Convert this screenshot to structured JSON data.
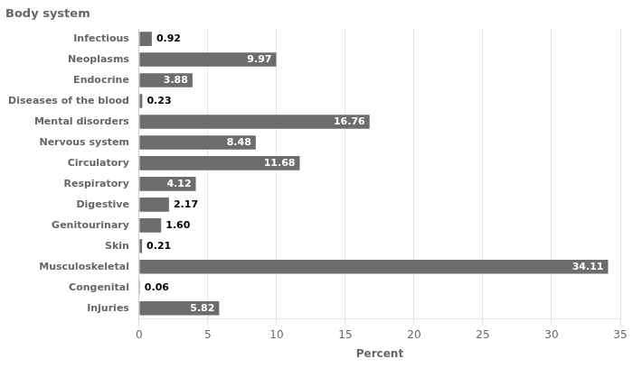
{
  "chart_data": {
    "type": "bar",
    "orientation": "horizontal",
    "title": "Body system",
    "xlabel": "Percent",
    "categories": [
      "Infectious",
      "Neoplasms",
      "Endocrine",
      "Diseases of the blood",
      "Mental disorders",
      "Nervous system",
      "Circulatory",
      "Respiratory",
      "Digestive",
      "Genitourinary",
      "Skin",
      "Musculoskeletal",
      "Congenital",
      "Injuries"
    ],
    "values": [
      0.92,
      9.97,
      3.88,
      0.23,
      16.76,
      8.48,
      11.68,
      4.12,
      2.17,
      1.6,
      0.21,
      34.11,
      0.06,
      5.82
    ],
    "value_labels": [
      "0.92",
      "9.97",
      "3.88",
      "0.23",
      "16.76",
      "8.48",
      "11.68",
      "4.12",
      "2.17",
      "1.60",
      "0.21",
      "34.11",
      "0.06",
      "5.82"
    ],
    "color": "#6d6d6d",
    "xlim": [
      0,
      35
    ],
    "xticks": [
      0,
      5,
      10,
      15,
      20,
      25,
      30,
      35
    ],
    "grid": true,
    "data_labels": true
  }
}
